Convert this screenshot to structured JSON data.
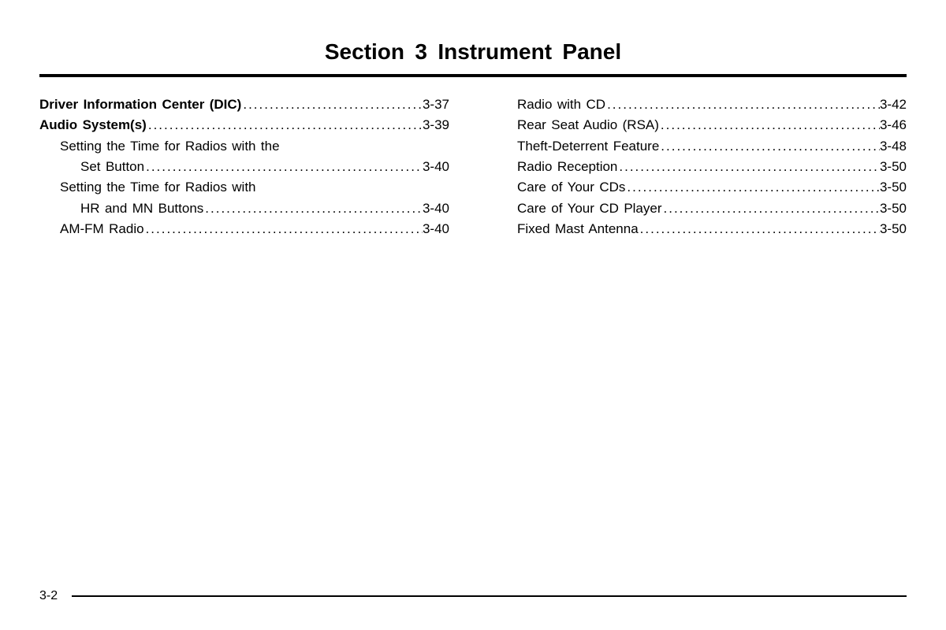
{
  "title": "Section  3     Instrument Panel",
  "pageNumber": "3-2",
  "columns": {
    "left": [
      {
        "type": "row",
        "bold": true,
        "indent": 0,
        "label": "Driver Information Center (DIC)",
        "page": "3-37"
      },
      {
        "type": "row",
        "bold": true,
        "indent": 0,
        "label": "Audio System(s)",
        "page": "3-39"
      },
      {
        "type": "wrap",
        "indent": 1,
        "firstLine": "Setting the Time for Radios with the",
        "secondLabel": "Set Button",
        "page": "3-40"
      },
      {
        "type": "wrap",
        "indent": 1,
        "firstLine": "Setting the Time for Radios with",
        "secondLabel": "HR and MN Buttons",
        "page": "3-40"
      },
      {
        "type": "row",
        "bold": false,
        "indent": 1,
        "label": "AM-FM Radio",
        "page": "3-40"
      }
    ],
    "right": [
      {
        "type": "row",
        "bold": false,
        "indent": 1,
        "label": "Radio with CD",
        "page": "3-42"
      },
      {
        "type": "row",
        "bold": false,
        "indent": 1,
        "label": "Rear Seat Audio (RSA)",
        "page": "3-46"
      },
      {
        "type": "row",
        "bold": false,
        "indent": 1,
        "label": "Theft-Deterrent Feature",
        "page": "3-48"
      },
      {
        "type": "row",
        "bold": false,
        "indent": 1,
        "label": "Radio Reception",
        "page": "3-50"
      },
      {
        "type": "row",
        "bold": false,
        "indent": 1,
        "label": "Care of Your CDs",
        "page": "3-50"
      },
      {
        "type": "row",
        "bold": false,
        "indent": 1,
        "label": "Care of Your CD Player",
        "page": "3-50"
      },
      {
        "type": "row",
        "bold": false,
        "indent": 1,
        "label": "Fixed Mast Antenna",
        "page": "3-50"
      }
    ]
  }
}
